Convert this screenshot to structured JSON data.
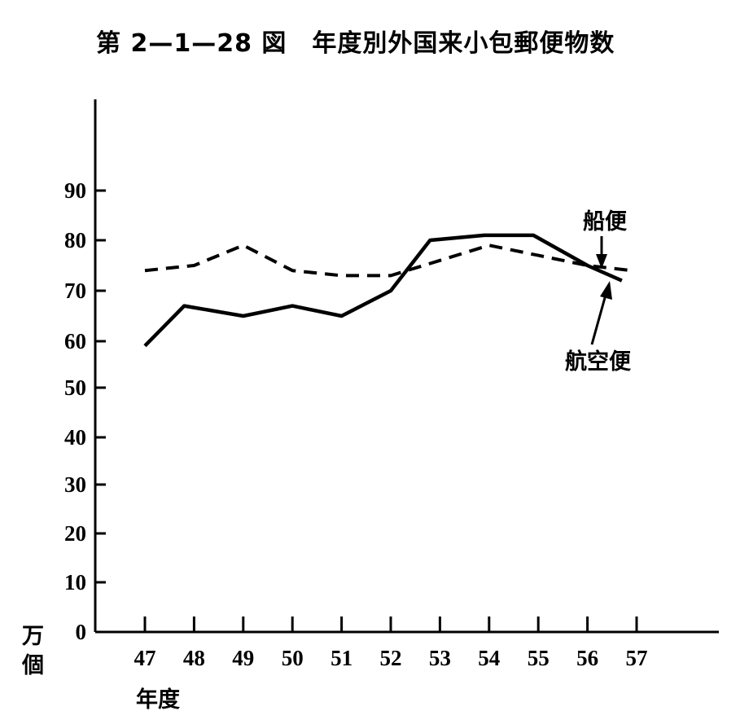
{
  "chart_data": {
    "type": "line",
    "title": "第 2—1—28 図　年度別外国来小包郵便物数",
    "ylabel": "万個",
    "xlabel": "年度",
    "x": [
      "47",
      "48",
      "49",
      "50",
      "51",
      "52",
      "53",
      "54",
      "55",
      "56",
      "57"
    ],
    "yticks": [
      "0",
      "10",
      "20",
      "30",
      "40",
      "50",
      "60",
      "70",
      "80",
      "90"
    ],
    "ylim": [
      0,
      90
    ],
    "grid": false,
    "series": [
      {
        "name": "船便",
        "style": "dashed",
        "points": [
          [
            47,
            74
          ],
          [
            48,
            75
          ],
          [
            49,
            79
          ],
          [
            50,
            74
          ],
          [
            51,
            73
          ],
          [
            52,
            73
          ],
          [
            53,
            76
          ],
          [
            54,
            79
          ],
          [
            55,
            77
          ],
          [
            56,
            75
          ],
          [
            56.9,
            74
          ]
        ]
      },
      {
        "name": "航空便",
        "style": "solid",
        "points": [
          [
            47,
            59
          ],
          [
            47.8,
            67
          ],
          [
            49,
            65
          ],
          [
            50,
            67
          ],
          [
            51,
            65
          ],
          [
            52,
            70
          ],
          [
            52.8,
            80
          ],
          [
            53.9,
            81
          ],
          [
            54.9,
            81
          ],
          [
            56,
            75
          ],
          [
            56.7,
            72
          ]
        ]
      }
    ]
  }
}
